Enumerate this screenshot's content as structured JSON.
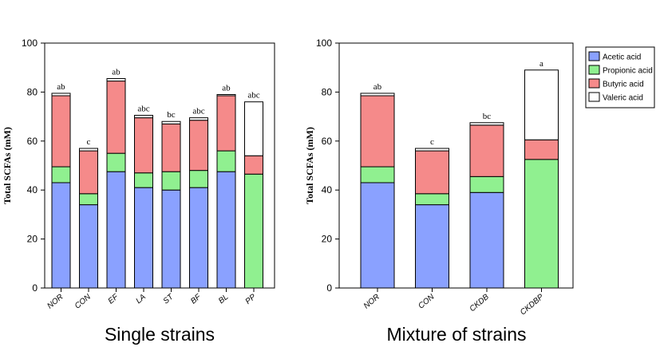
{
  "colors": {
    "Acetic acid": "#8aa1ff",
    "Propionic acid": "#90f090",
    "Butyric acid": "#f58a8a",
    "Valeric acid": "#ffffff"
  },
  "legend": {
    "placement": "top-right",
    "items": [
      "Acetic acid",
      "Propionic acid",
      "Butyric acid",
      "Valeric acid"
    ]
  },
  "chart_data": [
    {
      "type": "bar",
      "stacked": true,
      "caption": "Single strains",
      "ylabel": "Total SCFAs (mM)",
      "ylim": [
        0,
        100
      ],
      "yticks": [
        0,
        20,
        40,
        60,
        80,
        100
      ],
      "categories": [
        "NOR",
        "CON",
        "EF",
        "LA",
        "ST",
        "BF",
        "BL",
        "PP"
      ],
      "series": [
        {
          "name": "Acetic acid",
          "values": [
            43,
            34,
            47.5,
            41,
            40,
            41,
            47.5,
            0
          ]
        },
        {
          "name": "Propionic acid",
          "values": [
            6.5,
            4.5,
            7.5,
            6,
            7.5,
            7,
            8.5,
            46.5
          ]
        },
        {
          "name": "Butyric acid",
          "values": [
            29,
            17.5,
            29.5,
            22.5,
            19.5,
            20.5,
            22.5,
            7.5
          ]
        },
        {
          "name": "Valeric acid",
          "values": [
            1,
            1,
            1,
            1,
            1,
            1,
            0.5,
            22
          ]
        }
      ],
      "significance": [
        "ab",
        "c",
        "ab",
        "abc",
        "bc",
        "abc",
        "ab",
        "abc"
      ]
    },
    {
      "type": "bar",
      "stacked": true,
      "caption": "Mixture of strains",
      "ylabel": "Total SCFAs (mM)",
      "ylim": [
        0,
        100
      ],
      "yticks": [
        0,
        20,
        40,
        60,
        80,
        100
      ],
      "categories": [
        "NOR",
        "CON",
        "CKDB",
        "CKDBP"
      ],
      "series": [
        {
          "name": "Acetic acid",
          "values": [
            43,
            34,
            39,
            0
          ]
        },
        {
          "name": "Propionic acid",
          "values": [
            6.5,
            4.5,
            6.5,
            52.5
          ]
        },
        {
          "name": "Butyric acid",
          "values": [
            29,
            17.5,
            21,
            8
          ]
        },
        {
          "name": "Valeric acid",
          "values": [
            1,
            1,
            1,
            28.5
          ]
        }
      ],
      "significance": [
        "ab",
        "c",
        "bc",
        "a"
      ]
    }
  ]
}
